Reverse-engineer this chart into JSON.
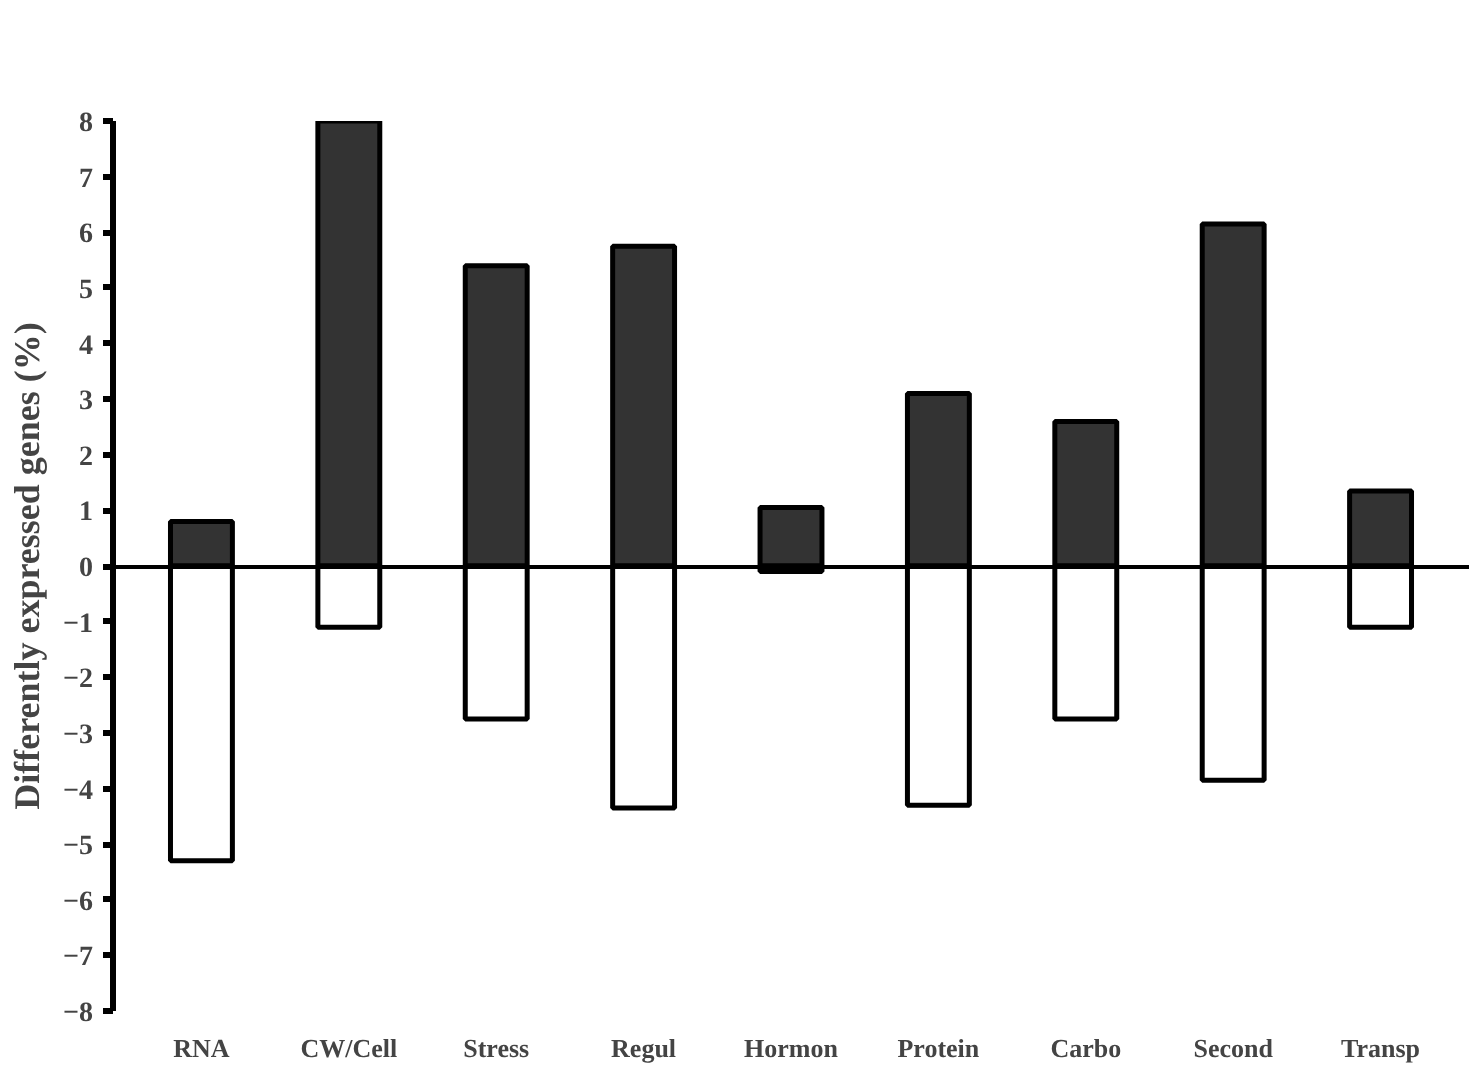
{
  "chart_data": {
    "type": "bar",
    "ylabel": "Differently expressed genes (%)",
    "categories": [
      "RNA",
      "CW/Cell",
      "Stress",
      "Regul",
      "Hormon",
      "Protein",
      "Carbo",
      "Second",
      "Transp"
    ],
    "series": [
      {
        "color": "#333333",
        "values": [
          0.8,
          8.0,
          5.4,
          5.75,
          1.05,
          3.1,
          2.6,
          6.15,
          1.35
        ]
      },
      {
        "color": "#ffffff",
        "values": [
          -5.3,
          -1.1,
          -2.75,
          -4.35,
          -0.1,
          -4.3,
          -2.75,
          -3.85,
          -1.1
        ]
      }
    ],
    "stacked": true,
    "ylim": [
      -8,
      8
    ],
    "yticks": [
      -8,
      -7,
      -6,
      -5,
      -4,
      -3,
      -2,
      -1,
      0,
      1,
      2,
      3,
      4,
      5,
      6,
      7,
      8
    ]
  }
}
